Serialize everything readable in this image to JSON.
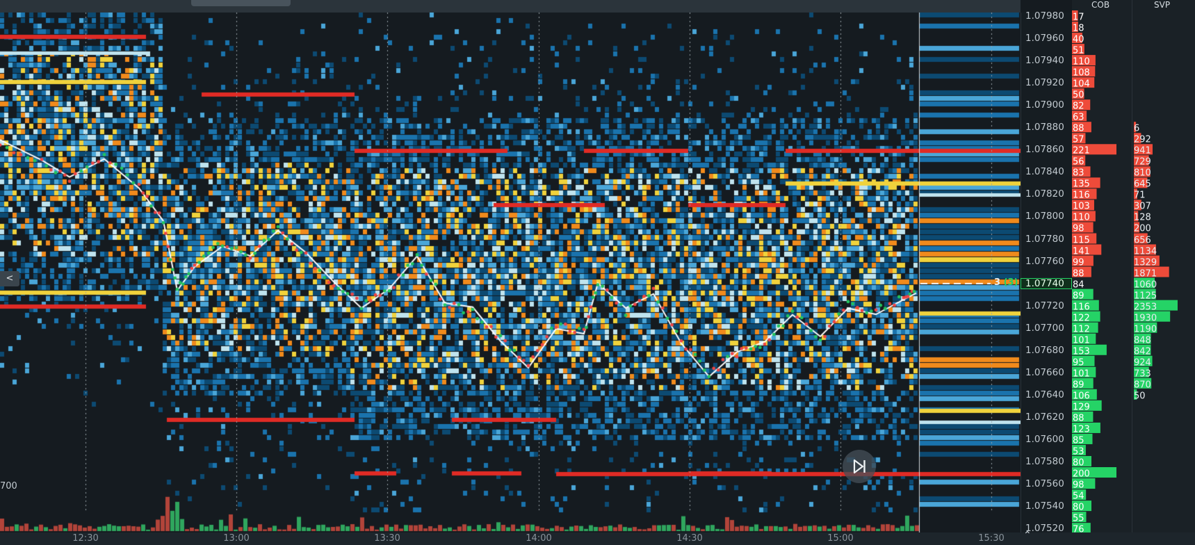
{
  "heatmap": {
    "colors": {
      "bg": "#151b20",
      "blue_dark": "#0c4a72",
      "blue": "#1a73ad",
      "blue_light": "#4aa6d8",
      "pale": "#bfe3ee",
      "yellow": "#f0d23c",
      "orange": "#f08a1c",
      "red": "#e02b25",
      "grid": "#9aa3a9",
      "now_line": "#d0d6da"
    },
    "time_labels": [
      "12:30",
      "13:00",
      "13:30",
      "14:00",
      "14:30",
      "15:00",
      "15:30"
    ],
    "collapse_label": "<",
    "left_value": "700",
    "price_tag": {
      "count": "3",
      "paren": "(3)"
    }
  },
  "price_axis": {
    "labels": [
      "1.07980",
      "1.07960",
      "1.07940",
      "1.07920",
      "1.07900",
      "1.07880",
      "1.07860",
      "1.07840",
      "1.07820",
      "1.07800",
      "1.07780",
      "1.07760",
      "1.07740",
      "1.07720",
      "1.07700",
      "1.07680",
      "1.07660",
      "1.07640",
      "1.07620",
      "1.07600",
      "1.07580",
      "1.07560",
      "1.07540",
      "1.07520"
    ],
    "current": "1.07740"
  },
  "cob": {
    "header": "COB",
    "colors": {
      "ask": "#ee4b3a",
      "bid": "#25d366"
    },
    "ask_values": [
      "17",
      "18",
      "40",
      "51",
      "110",
      "108",
      "104",
      "50",
      "82",
      "63",
      "88",
      "57",
      "221",
      "56",
      "83",
      "135",
      "116",
      "103",
      "110",
      "98",
      "115",
      "141",
      "99",
      "88"
    ],
    "current_value": "84",
    "bid_values": [
      "89",
      "116",
      "122",
      "112",
      "101",
      "153",
      "95",
      "101",
      "89",
      "106",
      "129",
      "88",
      "123",
      "85",
      "53",
      "80",
      "200",
      "98",
      "54",
      "80",
      "55",
      "76"
    ]
  },
  "svp": {
    "header": "SVP",
    "values": [
      "6",
      "292",
      "941",
      "729",
      "810",
      "645",
      "71",
      "307",
      "128",
      "200",
      "656",
      "1134",
      "1329",
      "1871",
      "1060",
      "1125",
      "2353",
      "1930",
      "1190",
      "848",
      "842",
      "924",
      "733",
      "870",
      "50"
    ]
  }
}
